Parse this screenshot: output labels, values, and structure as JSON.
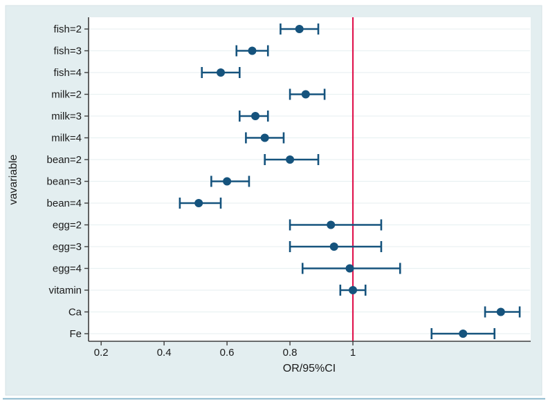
{
  "figure": {
    "background": "#ffffff",
    "region_background": "#e3eef0",
    "region_border": "#d4e2e6",
    "bottom_edge_color": "#9fc4d6"
  },
  "chart_data": {
    "type": "scatter",
    "subtype": "forest-plot",
    "title": "",
    "xlabel": "OR/95%CI",
    "ylabel": "vavariable",
    "legend": "none",
    "grid": "horizontal-only",
    "x_axis": {
      "scale": "linear",
      "min": 0.16,
      "max": 1.565,
      "ticks": [
        0.2,
        0.4,
        0.6,
        0.8,
        1
      ],
      "tick_labels": [
        "0.2",
        "0.4",
        "0.6",
        "0.8",
        "1"
      ]
    },
    "reference_line": {
      "x": 1
    },
    "rows": [
      {
        "label": "fish=2",
        "or": 0.83,
        "ci_low": 0.77,
        "ci_high": 0.89
      },
      {
        "label": "fish=3",
        "or": 0.68,
        "ci_low": 0.63,
        "ci_high": 0.73
      },
      {
        "label": "fish=4",
        "or": 0.58,
        "ci_low": 0.52,
        "ci_high": 0.64
      },
      {
        "label": "milk=2",
        "or": 0.85,
        "ci_low": 0.8,
        "ci_high": 0.91
      },
      {
        "label": "milk=3",
        "or": 0.69,
        "ci_low": 0.64,
        "ci_high": 0.73
      },
      {
        "label": "milk=4",
        "or": 0.72,
        "ci_low": 0.66,
        "ci_high": 0.78
      },
      {
        "label": "bean=2",
        "or": 0.8,
        "ci_low": 0.72,
        "ci_high": 0.89
      },
      {
        "label": "bean=3",
        "or": 0.6,
        "ci_low": 0.55,
        "ci_high": 0.67
      },
      {
        "label": "bean=4",
        "or": 0.51,
        "ci_low": 0.45,
        "ci_high": 0.58
      },
      {
        "label": "egg=2",
        "or": 0.93,
        "ci_low": 0.8,
        "ci_high": 1.09
      },
      {
        "label": "egg=3",
        "or": 0.94,
        "ci_low": 0.8,
        "ci_high": 1.09
      },
      {
        "label": "egg=4",
        "or": 0.99,
        "ci_low": 0.84,
        "ci_high": 1.15
      },
      {
        "label": "vitamin",
        "or": 1.0,
        "ci_low": 0.96,
        "ci_high": 1.04
      },
      {
        "label": "Ca",
        "or": 1.47,
        "ci_low": 1.42,
        "ci_high": 1.53
      },
      {
        "label": "Fe",
        "or": 1.35,
        "ci_low": 1.25,
        "ci_high": 1.45
      }
    ],
    "colors": {
      "marker": "#15537d",
      "ci": "#15537d",
      "reference_line": "#e0164f",
      "plot_background": "#ffffff",
      "gridline": "#e9f1f2",
      "axis": "#3d3d3d",
      "text": "#1a1a1a"
    }
  }
}
